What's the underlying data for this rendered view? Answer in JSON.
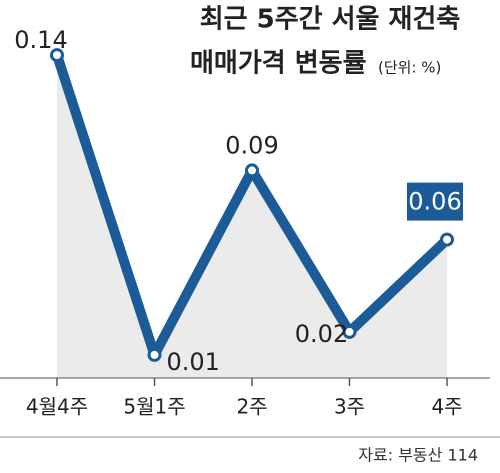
{
  "chart_data": {
    "type": "line",
    "title": [
      "최근 5주간 서울 재건축",
      "매매가격 변동률"
    ],
    "unit": "(단위: %)",
    "source": "자료: 부동산 114",
    "categories": [
      "4월4주",
      "5월1주",
      "2주",
      "3주",
      "4주"
    ],
    "values": [
      0.14,
      0.01,
      0.09,
      0.02,
      0.06
    ],
    "color": "#1b5b97",
    "ylim": [
      0,
      0.15
    ]
  }
}
